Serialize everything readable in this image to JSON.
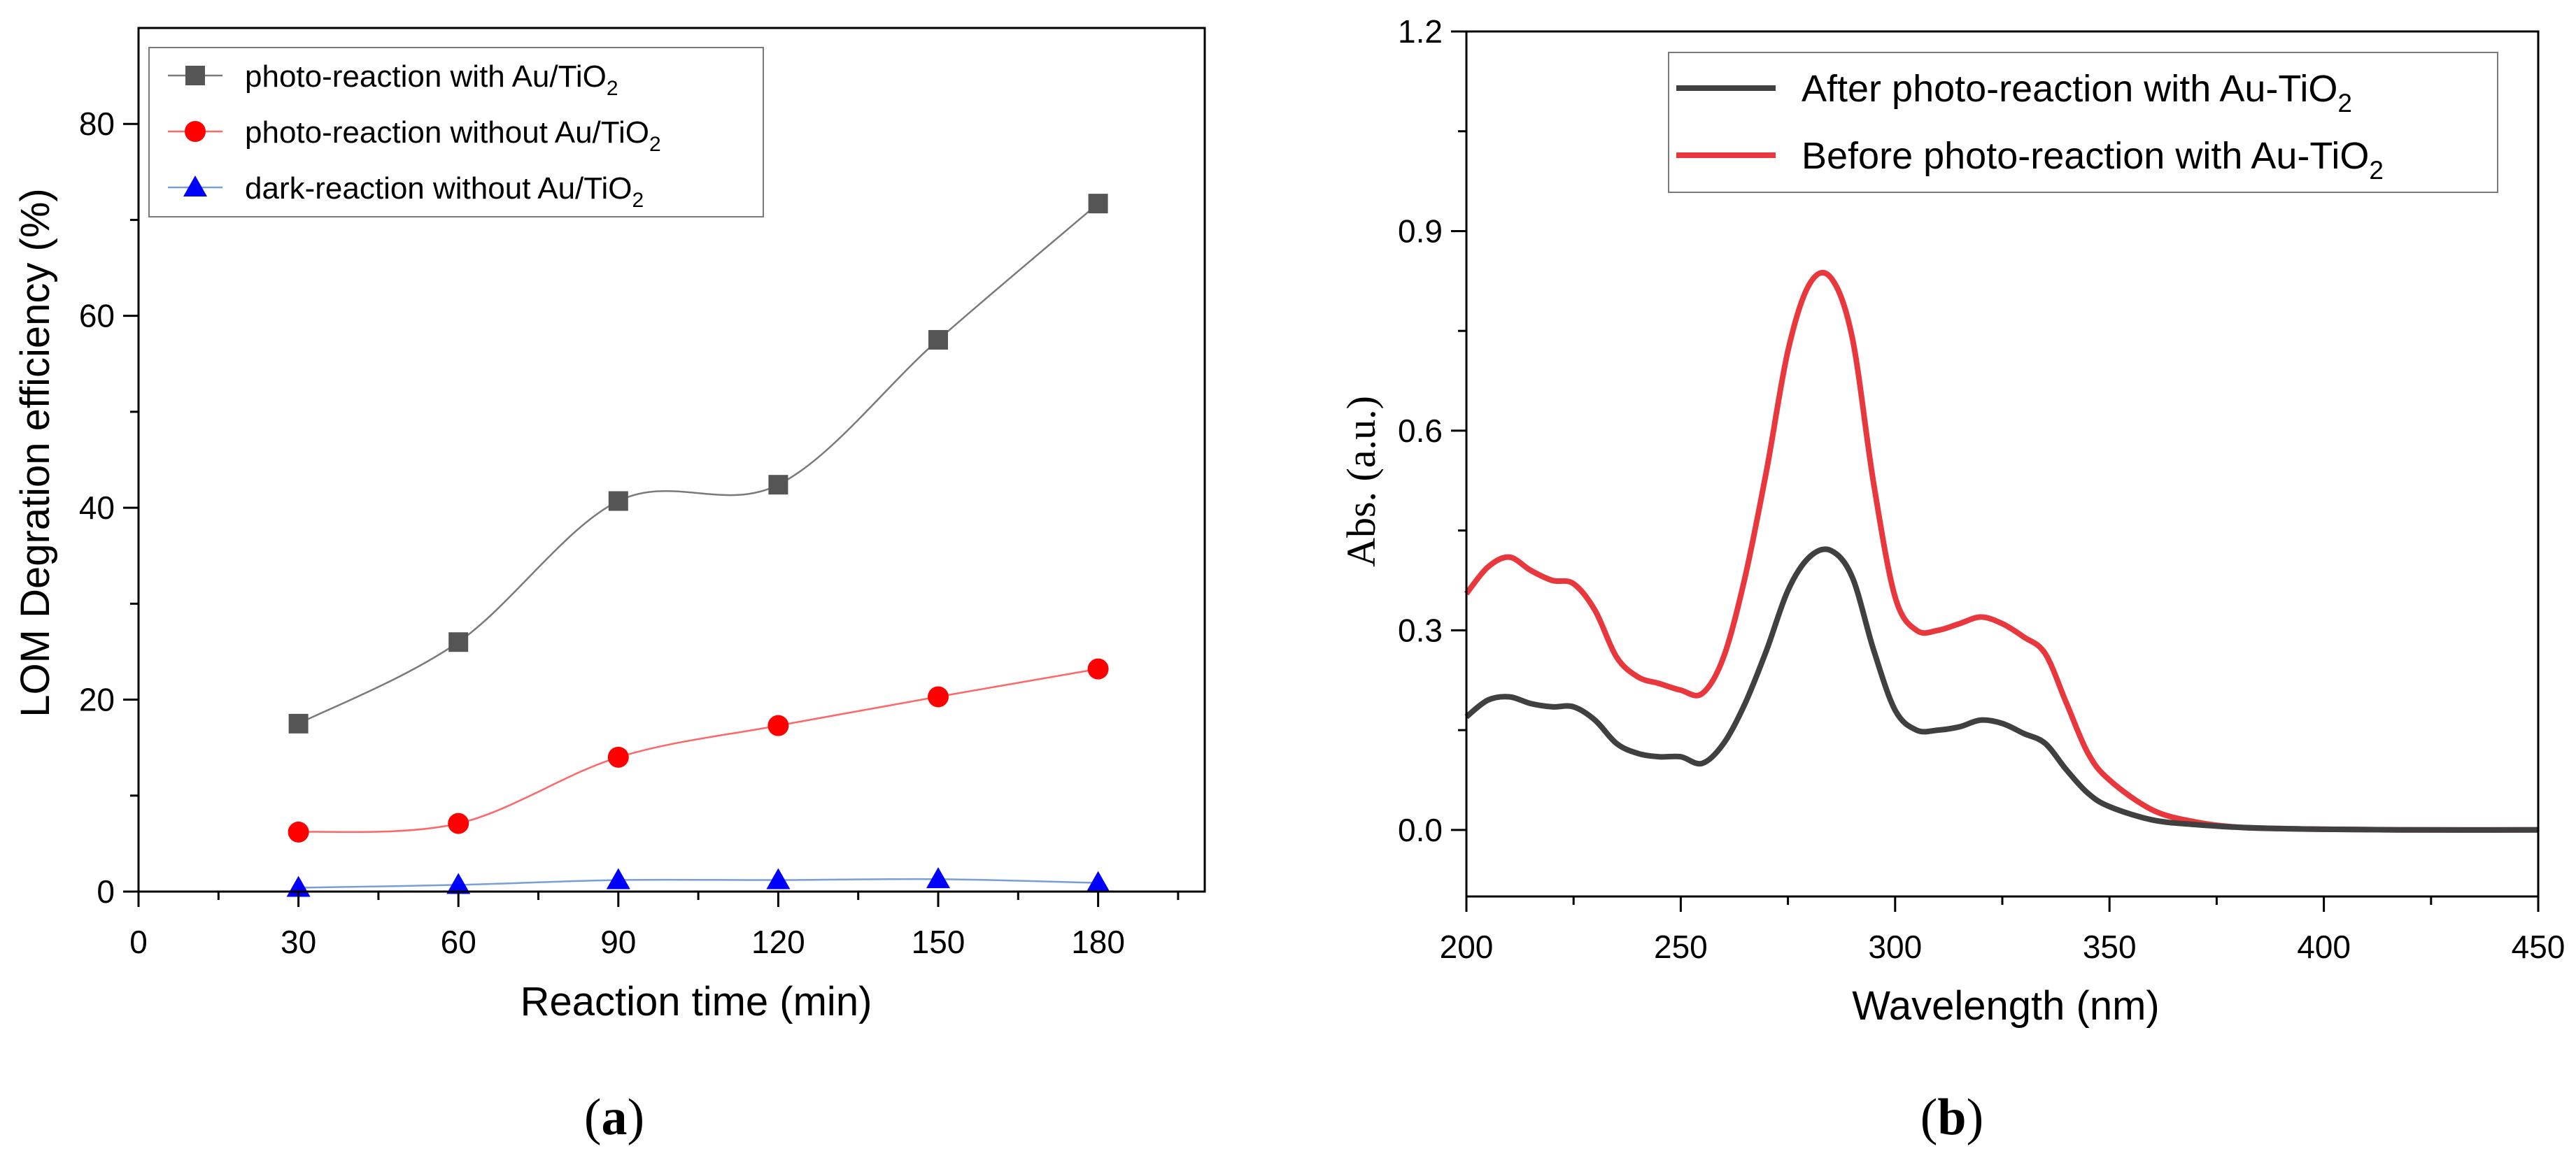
{
  "chart_data": [
    {
      "type": "line",
      "panel_label": "a",
      "title": "",
      "xlabel": "Reaction  time (min)",
      "ylabel": "LOM Degration efficiency (%)",
      "xlim": [
        0,
        200
      ],
      "ylim": [
        0,
        90
      ],
      "xticks": [
        0,
        30,
        60,
        90,
        120,
        150,
        180
      ],
      "yticks": [
        0,
        20,
        40,
        60,
        80
      ],
      "legend_position": "top-left",
      "x": [
        30,
        60,
        90,
        120,
        150,
        180
      ],
      "series": [
        {
          "name": "photo-reaction with  Au/TiO2",
          "legend_main": "photo-reaction with  Au/TiO",
          "legend_sub": "2",
          "marker": "square",
          "color": "#555555",
          "line_color": "#7a7a7a",
          "values": [
            17.5,
            26,
            40.7,
            42.4,
            57.5,
            71.7
          ]
        },
        {
          "name": "photo-reaction without Au/TiO2",
          "legend_main": "photo-reaction without Au/TiO",
          "legend_sub": "2",
          "marker": "circle",
          "color": "#ff0000",
          "line_color": "#ff6666",
          "values": [
            6.2,
            7.1,
            14,
            17.3,
            20.3,
            23.2
          ]
        },
        {
          "name": "dark-reaction without Au/TiO2",
          "legend_main": "dark-reaction without Au/TiO",
          "legend_sub": "2",
          "marker": "triangle",
          "color": "#0000ff",
          "line_color": "#7a9fd6",
          "values": [
            0.4,
            0.7,
            1.2,
            1.2,
            1.3,
            0.9
          ]
        }
      ]
    },
    {
      "type": "line",
      "panel_label": "b",
      "title": "",
      "xlabel": "Wavelength (nm)",
      "ylabel": "Abs. (a.u.)",
      "xlim": [
        200,
        450
      ],
      "ylim": [
        -0.1,
        1.2
      ],
      "xticks": [
        200,
        250,
        300,
        350,
        400,
        450
      ],
      "yticks": [
        0.0,
        0.3,
        0.6,
        0.9,
        1.2
      ],
      "ytick_labels": [
        "0.0",
        "0.3",
        "0.6",
        "0.9",
        "1.2"
      ],
      "legend_position": "top-right",
      "x": [
        200,
        205,
        210,
        215,
        220,
        225,
        230,
        235,
        240,
        245,
        250,
        255,
        260,
        265,
        270,
        275,
        280,
        285,
        290,
        295,
        300,
        305,
        310,
        315,
        320,
        325,
        330,
        335,
        340,
        345,
        350,
        360,
        370,
        380,
        390,
        400,
        420,
        450
      ],
      "series": [
        {
          "name": "After photo-reaction with Au-TiO2",
          "legend_main": "After photo-reaction with Au-TiO",
          "legend_sub": "2",
          "color": "#404040",
          "values": [
            0.17,
            0.195,
            0.2,
            0.19,
            0.185,
            0.185,
            0.165,
            0.13,
            0.115,
            0.11,
            0.11,
            0.1,
            0.13,
            0.19,
            0.27,
            0.36,
            0.41,
            0.42,
            0.38,
            0.27,
            0.18,
            0.15,
            0.15,
            0.155,
            0.165,
            0.16,
            0.145,
            0.13,
            0.09,
            0.055,
            0.035,
            0.015,
            0.008,
            0.004,
            0.002,
            0.001,
            0.0,
            0.0
          ]
        },
        {
          "name": "Before photo-reaction with Au-TiO2",
          "legend_main": "Before photo-reaction with Au-TiO",
          "legend_sub": "2",
          "color": "#e8383d",
          "values": [
            0.355,
            0.395,
            0.41,
            0.39,
            0.375,
            0.37,
            0.33,
            0.26,
            0.23,
            0.22,
            0.21,
            0.205,
            0.26,
            0.38,
            0.54,
            0.72,
            0.82,
            0.83,
            0.74,
            0.52,
            0.35,
            0.3,
            0.3,
            0.31,
            0.32,
            0.31,
            0.29,
            0.265,
            0.19,
            0.115,
            0.075,
            0.03,
            0.012,
            0.004,
            0.002,
            0.001,
            0.0,
            0.0
          ]
        }
      ]
    }
  ]
}
